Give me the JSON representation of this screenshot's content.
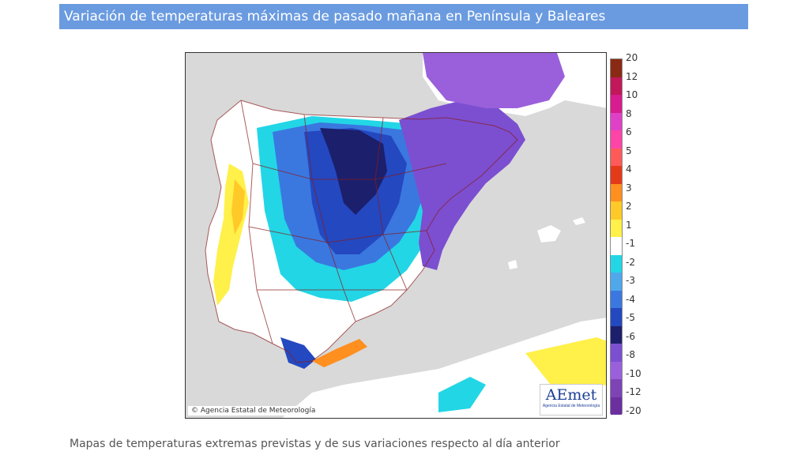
{
  "header": {
    "title": "Variación de temperaturas máximas de pasado mañana en Península y Baleares"
  },
  "map": {
    "copyright": "© Agencia Estatal de Meteorología",
    "logo": {
      "wordmark": "AEmet",
      "subtitle": "Agencia Estatal de Meteorología"
    },
    "colors": {
      "sea": "#d9d9d9",
      "land_no_change": "#ffffff",
      "border": "#8a1a1a"
    }
  },
  "legend": {
    "labels": [
      "20",
      "12",
      "10",
      "8",
      "6",
      "5",
      "4",
      "3",
      "2",
      "1",
      "-1",
      "-2",
      "-3",
      "-4",
      "-5",
      "-6",
      "-8",
      "-10",
      "-12",
      "-20"
    ],
    "colors": [
      "#8b2a14",
      "#c2185b",
      "#d81b8e",
      "#e040c8",
      "#ff44a8",
      "#ff5a5a",
      "#e53a1a",
      "#ff8f1f",
      "#ffc928",
      "#fff04a",
      "#ffffff",
      "#22d6e6",
      "#4fa8ea",
      "#3a78e0",
      "#2448c0",
      "#1c1f6c",
      "#7b4fd0",
      "#9a60dc",
      "#7e44b6",
      "#6c2fa0"
    ]
  },
  "caption": "Mapas de temperaturas extremas previstas y de sus variaciones respecto al día anterior"
}
